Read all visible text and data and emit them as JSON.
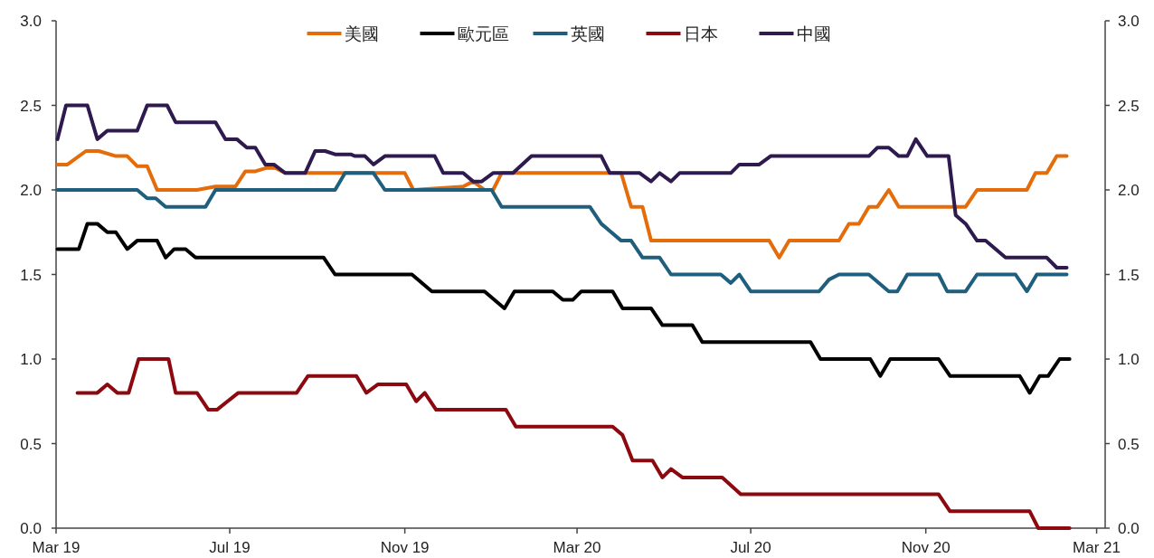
{
  "chart_data": {
    "type": "line",
    "legend": "top",
    "line_style": "solid",
    "xlim": [
      "2019-03-01",
      "2021-03-07"
    ],
    "xticks": [
      {
        "value": "2019-03-01",
        "label": "Mar 19"
      },
      {
        "value": "2019-07-01",
        "label": "Jul 19"
      },
      {
        "value": "2019-11-01",
        "label": "Nov 19"
      },
      {
        "value": "2020-03-01",
        "label": "Mar 20"
      },
      {
        "value": "2020-07-01",
        "label": "Jul 20"
      },
      {
        "value": "2020-11-01",
        "label": "Nov 20"
      },
      {
        "value": "2021-03-01",
        "label": "Mar 21"
      }
    ],
    "ylim": [
      0,
      3
    ],
    "yticks": [
      {
        "value": 0,
        "label": "0.0"
      },
      0.5,
      {
        "value": 1,
        "label": "1.0"
      },
      1.5,
      {
        "value": 2,
        "label": "2.0"
      },
      2.5,
      {
        "value": 3,
        "label": "3.0"
      }
    ],
    "y2lim": [
      0,
      3
    ],
    "y2ticks": [
      {
        "value": 0,
        "label": "0.0"
      },
      0.5,
      {
        "value": 1,
        "label": "1.0"
      },
      1.5,
      {
        "value": 2,
        "label": "2.0"
      },
      2.5,
      {
        "value": 3,
        "label": "3.0"
      }
    ],
    "series": [
      {
        "name": "美國",
        "color": "#e46c0a",
        "x": [
          "2019-03-02",
          "2019-03-09",
          "2019-03-22",
          "2019-03-31",
          "2019-04-12",
          "2019-04-20",
          "2019-04-27",
          "2019-05-04",
          "2019-05-11",
          "2019-06-08",
          "2019-06-21",
          "2019-07-05",
          "2019-07-12",
          "2019-07-19",
          "2019-07-27",
          "2019-08-02",
          "2019-08-09",
          "2019-11-01",
          "2019-11-07",
          "2019-12-12",
          "2019-12-19",
          "2019-12-27",
          "2020-01-02",
          "2020-01-08",
          "2020-04-01",
          "2020-04-08",
          "2020-04-16",
          "2020-04-22",
          "2020-07-14",
          "2020-07-21",
          "2020-07-28",
          "2020-09-01",
          "2020-09-08",
          "2020-09-15",
          "2020-09-22",
          "2020-09-28",
          "2020-10-06",
          "2020-10-13",
          "2020-11-29",
          "2020-12-07",
          "2021-01-11",
          "2021-01-17",
          "2021-01-25",
          "2021-02-01",
          "2021-02-08"
        ],
        "values": [
          2.15,
          2.15,
          2.23,
          2.23,
          2.2,
          2.2,
          2.14,
          2.14,
          2.0,
          2.0,
          2.02,
          2.02,
          2.11,
          2.11,
          2.13,
          2.13,
          2.1,
          2.1,
          2.0,
          2.02,
          2.05,
          2.0,
          2.0,
          2.1,
          2.1,
          1.9,
          1.9,
          1.7,
          1.7,
          1.6,
          1.7,
          1.7,
          1.8,
          1.8,
          1.9,
          1.9,
          2.0,
          1.9,
          1.9,
          2.0,
          2.0,
          2.1,
          2.1,
          2.2,
          2.2
        ]
      },
      {
        "name": "歐元區",
        "color": "#000000",
        "x": [
          "2019-03-02",
          "2019-03-17",
          "2019-03-23",
          "2019-03-30",
          "2019-04-06",
          "2019-04-12",
          "2019-04-20",
          "2019-04-27",
          "2019-05-11",
          "2019-05-17",
          "2019-05-23",
          "2019-05-31",
          "2019-06-07",
          "2019-09-05",
          "2019-09-13",
          "2019-11-06",
          "2019-11-20",
          "2019-12-27",
          "2020-01-10",
          "2020-01-17",
          "2020-02-13",
          "2020-02-20",
          "2020-02-27",
          "2020-03-04",
          "2020-03-26",
          "2020-04-02",
          "2020-04-22",
          "2020-04-30",
          "2020-05-21",
          "2020-05-28",
          "2020-08-12",
          "2020-08-19",
          "2020-09-23",
          "2020-09-30",
          "2020-10-07",
          "2020-11-10",
          "2020-11-18",
          "2021-01-06",
          "2021-01-13",
          "2021-01-20",
          "2021-01-26",
          "2021-02-03",
          "2021-02-10"
        ],
        "values": [
          1.65,
          1.65,
          1.8,
          1.8,
          1.75,
          1.75,
          1.65,
          1.7,
          1.7,
          1.6,
          1.65,
          1.65,
          1.6,
          1.6,
          1.5,
          1.5,
          1.4,
          1.4,
          1.3,
          1.4,
          1.4,
          1.35,
          1.35,
          1.4,
          1.4,
          1.3,
          1.3,
          1.2,
          1.2,
          1.1,
          1.1,
          1.0,
          1.0,
          0.9,
          1.0,
          1.0,
          0.9,
          0.9,
          0.8,
          0.9,
          0.9,
          1.0,
          1.0
        ]
      },
      {
        "name": "英國",
        "color": "#1f5f7d",
        "x": [
          "2019-03-02",
          "2019-04-27",
          "2019-05-04",
          "2019-05-10",
          "2019-05-17",
          "2019-06-14",
          "2019-06-21",
          "2019-09-13",
          "2019-09-20",
          "2019-10-10",
          "2019-10-18",
          "2020-01-01",
          "2020-01-08",
          "2020-03-10",
          "2020-03-18",
          "2020-04-01",
          "2020-04-08",
          "2020-04-16",
          "2020-04-28",
          "2020-05-06",
          "2020-06-10",
          "2020-06-17",
          "2020-06-23",
          "2020-07-01",
          "2020-08-18",
          "2020-08-25",
          "2020-09-01",
          "2020-09-22",
          "2020-10-06",
          "2020-10-12",
          "2020-10-19",
          "2020-11-10",
          "2020-11-16",
          "2020-11-29",
          "2020-12-07",
          "2021-01-03",
          "2021-01-11",
          "2021-01-18",
          "2021-02-08"
        ],
        "values": [
          2.0,
          2.0,
          1.95,
          1.95,
          1.9,
          1.9,
          2.0,
          2.0,
          2.1,
          2.1,
          2.0,
          2.0,
          1.9,
          1.9,
          1.8,
          1.7,
          1.7,
          1.6,
          1.6,
          1.5,
          1.5,
          1.45,
          1.5,
          1.4,
          1.4,
          1.47,
          1.5,
          1.5,
          1.4,
          1.4,
          1.5,
          1.5,
          1.4,
          1.4,
          1.5,
          1.5,
          1.4,
          1.5,
          1.5
        ]
      },
      {
        "name": "日本",
        "color": "#8c0a0f",
        "x": [
          "2019-03-16",
          "2019-03-30",
          "2019-04-06",
          "2019-04-13",
          "2019-04-21",
          "2019-04-28",
          "2019-05-19",
          "2019-05-24",
          "2019-06-08",
          "2019-06-16",
          "2019-06-22",
          "2019-07-07",
          "2019-08-17",
          "2019-08-25",
          "2019-09-28",
          "2019-10-05",
          "2019-10-13",
          "2019-11-02",
          "2019-11-09",
          "2019-11-15",
          "2019-11-23",
          "2020-01-11",
          "2020-01-18",
          "2020-03-26",
          "2020-04-02",
          "2020-04-09",
          "2020-04-23",
          "2020-04-30",
          "2020-05-06",
          "2020-05-14",
          "2020-06-11",
          "2020-06-24",
          "2020-11-10",
          "2020-11-18",
          "2021-01-13",
          "2021-01-19",
          "2021-02-10"
        ],
        "values": [
          0.8,
          0.8,
          0.85,
          0.8,
          0.8,
          1.0,
          1.0,
          0.8,
          0.8,
          0.7,
          0.7,
          0.8,
          0.8,
          0.9,
          0.9,
          0.8,
          0.85,
          0.85,
          0.75,
          0.8,
          0.7,
          0.7,
          0.6,
          0.6,
          0.55,
          0.4,
          0.4,
          0.3,
          0.35,
          0.3,
          0.3,
          0.2,
          0.2,
          0.1,
          0.1,
          0.0,
          0.0
        ]
      },
      {
        "name": "中國",
        "color": "#2e1a4f",
        "x": [
          "2019-03-02",
          "2019-03-08",
          "2019-03-23",
          "2019-03-30",
          "2019-04-06",
          "2019-04-27",
          "2019-05-04",
          "2019-05-18",
          "2019-05-24",
          "2019-06-21",
          "2019-06-28",
          "2019-07-06",
          "2019-07-13",
          "2019-07-19",
          "2019-07-26",
          "2019-08-01",
          "2019-08-09",
          "2019-08-23",
          "2019-08-30",
          "2019-09-06",
          "2019-09-13",
          "2019-09-24",
          "2019-09-27",
          "2019-10-04",
          "2019-10-10",
          "2019-10-18",
          "2019-11-22",
          "2019-11-28",
          "2019-12-12",
          "2019-12-19",
          "2019-12-25",
          "2020-01-02",
          "2020-01-16",
          "2020-01-29",
          "2020-03-18",
          "2020-03-24",
          "2020-04-14",
          "2020-04-22",
          "2020-04-28",
          "2020-05-06",
          "2020-05-12",
          "2020-06-17",
          "2020-06-23",
          "2020-07-07",
          "2020-07-15",
          "2020-09-22",
          "2020-09-28",
          "2020-10-06",
          "2020-10-13",
          "2020-10-19",
          "2020-10-25",
          "2020-11-02",
          "2020-11-17",
          "2020-11-22",
          "2020-11-29",
          "2020-12-07",
          "2020-12-13",
          "2020-12-27",
          "2021-01-25",
          "2021-02-01",
          "2021-02-08"
        ],
        "values": [
          2.3,
          2.5,
          2.5,
          2.3,
          2.35,
          2.35,
          2.5,
          2.5,
          2.4,
          2.4,
          2.3,
          2.3,
          2.25,
          2.25,
          2.15,
          2.15,
          2.1,
          2.1,
          2.23,
          2.23,
          2.21,
          2.21,
          2.2,
          2.2,
          2.15,
          2.2,
          2.2,
          2.1,
          2.1,
          2.05,
          2.05,
          2.1,
          2.1,
          2.2,
          2.2,
          2.1,
          2.1,
          2.05,
          2.1,
          2.05,
          2.1,
          2.1,
          2.15,
          2.15,
          2.2,
          2.2,
          2.25,
          2.25,
          2.2,
          2.2,
          2.3,
          2.2,
          2.2,
          1.85,
          1.8,
          1.7,
          1.7,
          1.6,
          1.6,
          1.54,
          1.54
        ]
      }
    ]
  }
}
